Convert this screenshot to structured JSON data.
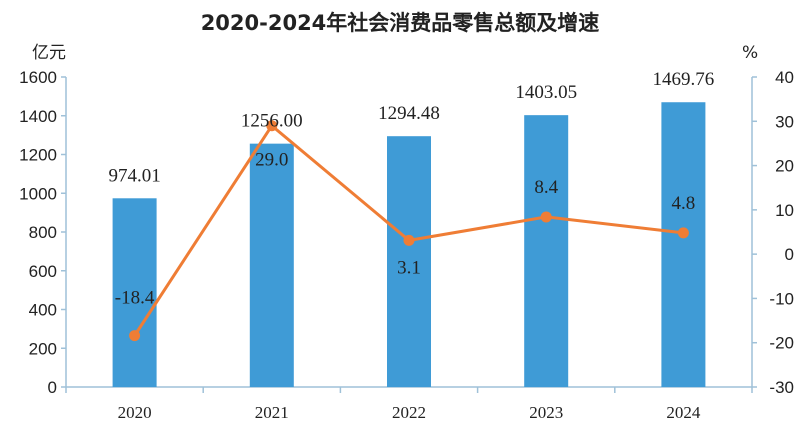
{
  "chart_data": {
    "type": "bar",
    "title": "2020-2024年社会消费品零售总额及增速",
    "categories": [
      "2020",
      "2021",
      "2022",
      "2023",
      "2024"
    ],
    "left_axis": {
      "label": "亿元",
      "range": [
        0,
        1600
      ],
      "ticks": [
        "0",
        "200",
        "400",
        "600",
        "800",
        "1000",
        "1200",
        "1400",
        "1600"
      ]
    },
    "right_axis": {
      "label": "%",
      "range": [
        -30,
        40
      ],
      "ticks": [
        "-30",
        "-20",
        "-10",
        "0",
        "10",
        "20",
        "30",
        "40"
      ]
    },
    "series": [
      {
        "type": "bar",
        "axis": "left",
        "color": "#3f9bd6",
        "values": [
          974.01,
          1256.0,
          1294.48,
          1403.05,
          1469.76
        ],
        "labels": [
          "974.01",
          "1256.00",
          "1294.48",
          "1403.05",
          "1469.76"
        ]
      },
      {
        "type": "line",
        "axis": "right",
        "color": "#ef7d35",
        "values": [
          -18.4,
          29.0,
          3.1,
          8.4,
          4.8
        ],
        "labels": [
          "-18.4",
          "29.0",
          "3.1",
          "8.4",
          "4.8"
        ]
      }
    ],
    "grid": false,
    "legend": "none"
  }
}
